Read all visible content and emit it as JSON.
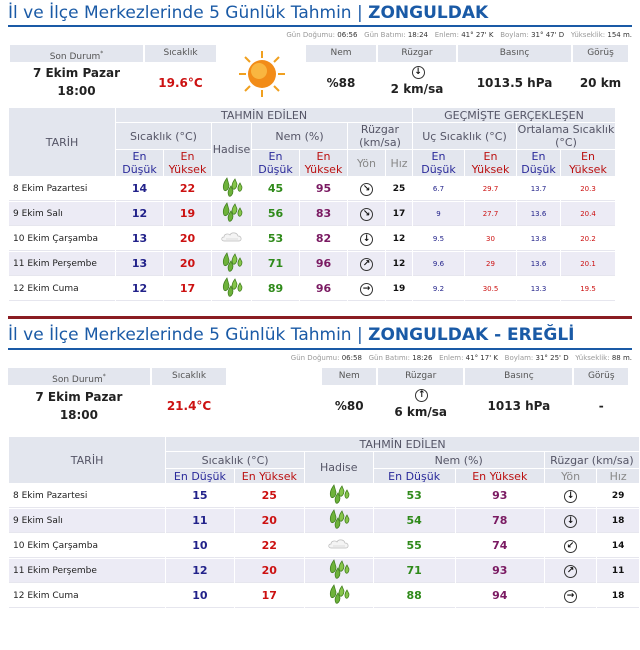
{
  "section1": {
    "title_prefix": "İl ve İlçe Merkezlerinde 5 Günlük Tahmin | ",
    "title_city": "ZONGULDAK",
    "meta": {
      "sunrise_label": "Gün Doğumu:",
      "sunrise": "06:56",
      "sunset_label": "Gün Batımı:",
      "sunset": "18:24",
      "lat_label": "Enlem:",
      "lat": "41° 27' K",
      "lon_label": "Boylam:",
      "lon": "31° 47' D",
      "alt_label": "Yükseklik:",
      "alt": "154 m."
    },
    "current": {
      "status_label": "Son Durum",
      "date": "7 Ekim Pazar",
      "time": "18:00",
      "temp_label": "Sıcaklık",
      "temp": "19.6°C",
      "humidity_label": "Nem",
      "humidity": "%88",
      "wind_label": "Rüzgar",
      "wind_dir": "↓",
      "wind": "2 km/sa",
      "pressure_label": "Basınç",
      "pressure": "1013.5 hPa",
      "visibility_label": "Görüş",
      "visibility": "20 km",
      "icon": "sun-icon"
    },
    "table": {
      "date_header": "TARİH",
      "forecast_header": "TAHMİN EDİLEN",
      "past_header": "GEÇMİŞTE GERÇEKLEŞEN",
      "temp_header": "Sıcaklık (°C)",
      "event_header": "Hadise",
      "humidity_header": "Nem (%)",
      "wind_header": "Rüzgar (km/sa)",
      "extreme_header": "Uç Sıcaklık (°C)",
      "avg_header": "Ortalama Sıcaklık (°C)",
      "min_label": "En Düşük",
      "max_label": "En Yüksek",
      "dir_label": "Yön",
      "speed_label": "Hız",
      "rows": [
        {
          "date": "8 Ekim Pazartesi",
          "lo": "14",
          "hi": "22",
          "event": "rain-icon",
          "hlo": "45",
          "hhi": "95",
          "dir": "↘",
          "speed": "25",
          "plo": "6.7",
          "phi": "29.7",
          "alo": "13.7",
          "ahi": "20.3"
        },
        {
          "date": "9 Ekim Salı",
          "lo": "12",
          "hi": "19",
          "event": "rain-icon",
          "hlo": "56",
          "hhi": "83",
          "dir": "↘",
          "speed": "17",
          "plo": "9",
          "phi": "27.7",
          "alo": "13.6",
          "ahi": "20.4"
        },
        {
          "date": "10 Ekim Çarşamba",
          "lo": "13",
          "hi": "20",
          "event": "cloud-icon",
          "hlo": "53",
          "hhi": "82",
          "dir": "↓",
          "speed": "12",
          "plo": "9.5",
          "phi": "30",
          "alo": "13.8",
          "ahi": "20.2"
        },
        {
          "date": "11 Ekim Perşembe",
          "lo": "13",
          "hi": "20",
          "event": "rain-icon",
          "hlo": "71",
          "hhi": "96",
          "dir": "↗",
          "speed": "12",
          "plo": "9.6",
          "phi": "29",
          "alo": "13.6",
          "ahi": "20.1"
        },
        {
          "date": "12 Ekim Cuma",
          "lo": "12",
          "hi": "17",
          "event": "rain-icon",
          "hlo": "89",
          "hhi": "96",
          "dir": "→",
          "speed": "19",
          "plo": "9.2",
          "phi": "30.5",
          "alo": "13.3",
          "ahi": "19.5"
        }
      ]
    }
  },
  "section2": {
    "title_prefix": "İl ve İlçe Merkezlerinde 5 Günlük Tahmin | ",
    "title_city": "ZONGULDAK - EREĞLİ",
    "meta": {
      "sunrise_label": "Gün Doğumu:",
      "sunrise": "06:58",
      "sunset_label": "Gün Batımı:",
      "sunset": "18:26",
      "lat_label": "Enlem:",
      "lat": "41° 17' K",
      "lon_label": "Boylam:",
      "lon": "31° 25' D",
      "alt_label": "Yükseklik:",
      "alt": "88 m."
    },
    "current": {
      "status_label": "Son Durum",
      "date": "7 Ekim Pazar",
      "time": "18:00",
      "temp_label": "Sıcaklık",
      "temp": "21.4°C",
      "humidity_label": "Nem",
      "humidity": "%80",
      "wind_label": "Rüzgar",
      "wind_dir": "↑",
      "wind": "6 km/sa",
      "pressure_label": "Basınç",
      "pressure": "1013 hPa",
      "visibility_label": "Görüş",
      "visibility": "-"
    },
    "table": {
      "date_header": "TARİH",
      "forecast_header": "TAHMİN EDİLEN",
      "temp_header": "Sıcaklık (°C)",
      "event_header": "Hadise",
      "humidity_header": "Nem (%)",
      "wind_header": "Rüzgar (km/sa)",
      "min_label": "En Düşük",
      "max_label": "En Yüksek",
      "dir_label": "Yön",
      "speed_label": "Hız",
      "rows": [
        {
          "date": "8 Ekim Pazartesi",
          "lo": "15",
          "hi": "25",
          "event": "rain-icon",
          "hlo": "53",
          "hhi": "93",
          "dir": "↓",
          "speed": "29"
        },
        {
          "date": "9 Ekim Salı",
          "lo": "11",
          "hi": "20",
          "event": "rain-icon",
          "hlo": "54",
          "hhi": "78",
          "dir": "↓",
          "speed": "18"
        },
        {
          "date": "10 Ekim Çarşamba",
          "lo": "10",
          "hi": "22",
          "event": "cloud-icon",
          "hlo": "55",
          "hhi": "74",
          "dir": "↙",
          "speed": "14"
        },
        {
          "date": "11 Ekim Perşembe",
          "lo": "12",
          "hi": "20",
          "event": "rain-icon",
          "hlo": "71",
          "hhi": "93",
          "dir": "↗",
          "speed": "11"
        },
        {
          "date": "12 Ekim Cuma",
          "lo": "10",
          "hi": "17",
          "event": "rain-icon",
          "hlo": "88",
          "hhi": "94",
          "dir": "→",
          "speed": "18"
        }
      ]
    }
  }
}
